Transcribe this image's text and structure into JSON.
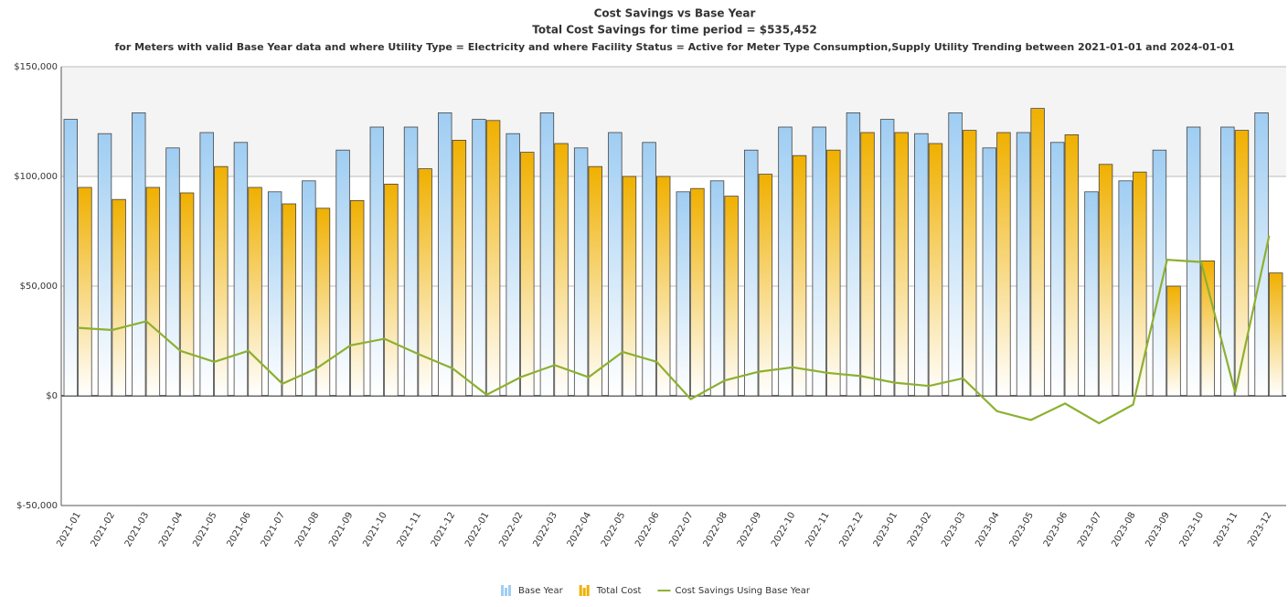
{
  "chart_data": {
    "type": "bar_line",
    "title": "Cost Savings vs Base Year",
    "subtitle": "Total Cost Savings for time period = $535,452",
    "description": "for Meters with valid  Base Year data and  where Utility Type =  Electricity and where Facility Status =  Active for Meter Type Consumption,Supply Utility Trending between  2021-01-01 and 2024-01-01",
    "categories": [
      "2021-01",
      "2021-02",
      "2021-03",
      "2021-04",
      "2021-05",
      "2021-06",
      "2021-07",
      "2021-08",
      "2021-09",
      "2021-10",
      "2021-11",
      "2021-12",
      "2022-01",
      "2022-02",
      "2022-03",
      "2022-04",
      "2022-05",
      "2022-06",
      "2022-07",
      "2022-08",
      "2022-09",
      "2022-10",
      "2022-11",
      "2022-12",
      "2023-01",
      "2023-02",
      "2023-03",
      "2023-04",
      "2023-05",
      "2023-06",
      "2023-07",
      "2023-08",
      "2023-09",
      "2023-10",
      "2023-11",
      "2023-12"
    ],
    "series": [
      {
        "name": "Base Year",
        "type": "bar",
        "color": "#9fcdf2",
        "values": [
          126000,
          119500,
          129000,
          113000,
          120000,
          115500,
          93000,
          98000,
          112000,
          122500,
          122500,
          129000,
          126000,
          119500,
          129000,
          113000,
          120000,
          115500,
          93000,
          98000,
          112000,
          122500,
          122500,
          129000,
          126000,
          119500,
          129000,
          113000,
          120000,
          115500,
          93000,
          98000,
          112000,
          122500,
          122500,
          129000
        ]
      },
      {
        "name": "Total Cost",
        "type": "bar",
        "color": "#f0b000",
        "values": [
          95000,
          89500,
          95000,
          92500,
          104500,
          95000,
          87500,
          85500,
          89000,
          96500,
          103500,
          116500,
          125500,
          111000,
          115000,
          104500,
          100000,
          100000,
          94500,
          91000,
          101000,
          109500,
          112000,
          120000,
          120000,
          115000,
          121000,
          120000,
          131000,
          119000,
          105500,
          102000,
          50000,
          61500,
          121000,
          56000
        ]
      },
      {
        "name": "Cost Savings Using Base Year",
        "type": "line",
        "color": "#8db030",
        "values": [
          31000,
          30000,
          34000,
          20500,
          15500,
          20500,
          5500,
          12500,
          23000,
          26000,
          19000,
          12500,
          500,
          8500,
          14000,
          8500,
          20000,
          15500,
          -1500,
          7000,
          11000,
          13000,
          10500,
          9000,
          6000,
          4500,
          8000,
          -7000,
          -11000,
          -3500,
          -12500,
          -4000,
          62000,
          61000,
          1500,
          73000
        ]
      }
    ],
    "ylim": [
      -50000,
      150000
    ],
    "yticks": [
      {
        "value": -50000,
        "label": "$-50,000"
      },
      {
        "value": 0,
        "label": "$0"
      },
      {
        "value": 50000,
        "label": "$50,000"
      },
      {
        "value": 100000,
        "label": "$100,000"
      },
      {
        "value": 150000,
        "label": "$150,000"
      }
    ],
    "grid": true,
    "legend": "bottom"
  }
}
